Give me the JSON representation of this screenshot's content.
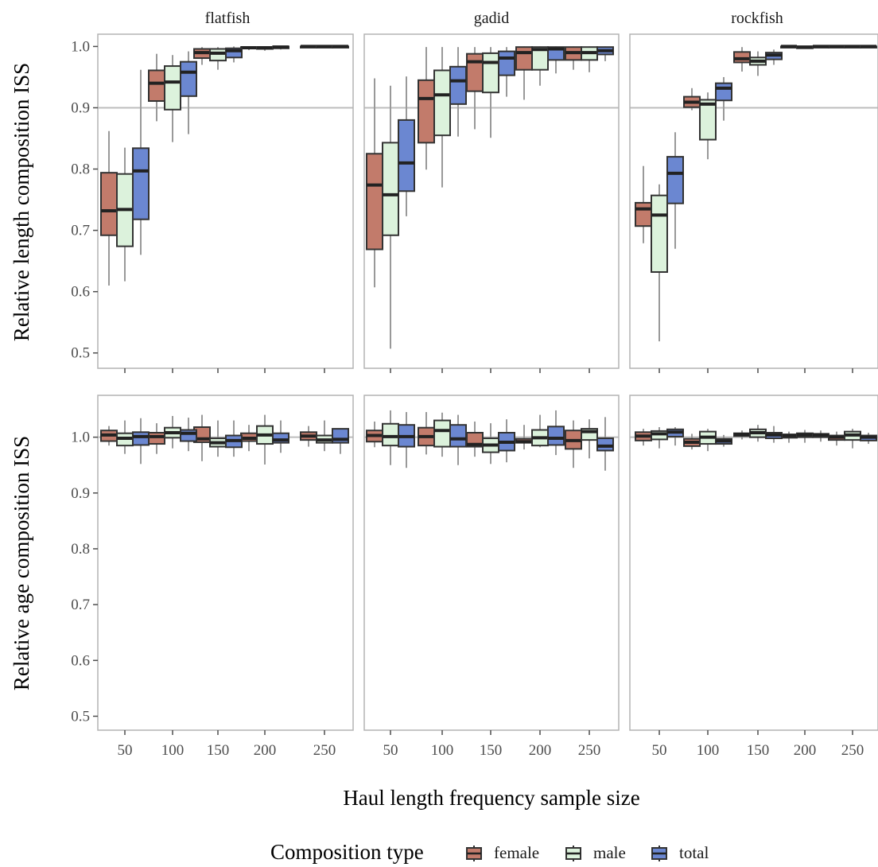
{
  "chart_data": {
    "type": "boxplot",
    "facets": {
      "columns": [
        "flatfish",
        "gadid",
        "rockfish"
      ],
      "rows": [
        "length",
        "age"
      ]
    },
    "categories": [
      "50",
      "100",
      "150",
      "200",
      "250"
    ],
    "xlabel": "Haul length frequency sample size",
    "ylabels": {
      "length": "Relative length composition ISS",
      "age": "Relative age composition ISS"
    },
    "ylim": [
      0.475,
      1.02
    ],
    "yticks": [
      0.5,
      0.6,
      0.7,
      0.8,
      0.9,
      1.0
    ],
    "yticks_age": [
      0.5,
      0.6,
      0.7,
      0.8,
      0.9,
      1.0
    ],
    "ylim_age": [
      0.475,
      1.075
    ],
    "reference_lines": {
      "length": 0.9,
      "age": 1.0
    },
    "legend": {
      "title": "Composition type",
      "entries": [
        "female",
        "male",
        "total"
      ],
      "colors": [
        "#c27b6b",
        "#dcf2dc",
        "#6b87d1"
      ],
      "position": "bottom"
    },
    "panels": {
      "length": {
        "flatfish": {
          "female": [
            [
              0.61,
              0.692,
              0.732,
              0.794,
              0.862
            ],
            [
              0.878,
              0.911,
              0.94,
              0.961,
              0.988
            ],
            [
              0.97,
              0.981,
              0.99,
              0.996,
              0.999
            ],
            [
              0.994,
              0.997,
              0.998,
              0.999,
              1.0
            ],
            [
              0.998,
              0.999,
              1.0,
              1.0,
              1.0
            ]
          ],
          "male": [
            [
              0.617,
              0.674,
              0.734,
              0.792,
              0.835
            ],
            [
              0.844,
              0.897,
              0.942,
              0.968,
              0.986
            ],
            [
              0.962,
              0.977,
              0.989,
              0.996,
              0.999
            ],
            [
              0.993,
              0.996,
              0.998,
              0.999,
              1.0
            ],
            [
              0.998,
              0.999,
              1.0,
              1.0,
              1.0
            ]
          ],
          "total": [
            [
              0.66,
              0.718,
              0.797,
              0.834,
              0.962
            ],
            [
              0.857,
              0.919,
              0.958,
              0.975,
              0.992
            ],
            [
              0.974,
              0.982,
              0.993,
              0.997,
              1.0
            ],
            [
              0.995,
              0.997,
              0.999,
              1.0,
              1.0
            ],
            [
              0.999,
              0.999,
              1.0,
              1.0,
              1.0
            ]
          ]
        },
        "gadid": {
          "female": [
            [
              0.607,
              0.669,
              0.774,
              0.825,
              0.948
            ],
            [
              0.799,
              0.843,
              0.915,
              0.945,
              0.999
            ],
            [
              0.865,
              0.927,
              0.975,
              0.988,
              0.999
            ],
            [
              0.913,
              0.962,
              0.99,
              0.999,
              1.0
            ],
            [
              0.962,
              0.978,
              0.99,
              0.999,
              1.0
            ]
          ],
          "male": [
            [
              0.507,
              0.692,
              0.758,
              0.843,
              0.936
            ],
            [
              0.77,
              0.855,
              0.921,
              0.961,
              0.999
            ],
            [
              0.851,
              0.925,
              0.974,
              0.989,
              0.999
            ],
            [
              0.936,
              0.962,
              0.995,
              0.999,
              1.0
            ],
            [
              0.958,
              0.978,
              0.99,
              0.999,
              1.0
            ]
          ],
          "total": [
            [
              0.723,
              0.764,
              0.81,
              0.88,
              0.951
            ],
            [
              0.853,
              0.906,
              0.944,
              0.967,
              0.999
            ],
            [
              0.918,
              0.953,
              0.981,
              0.992,
              0.999
            ],
            [
              0.956,
              0.978,
              0.996,
              0.999,
              1.0
            ],
            [
              0.976,
              0.987,
              0.993,
              0.999,
              1.0
            ]
          ]
        },
        "rockfish": {
          "female": [
            [
              0.679,
              0.707,
              0.735,
              0.745,
              0.805
            ],
            [
              0.896,
              0.901,
              0.909,
              0.918,
              0.932
            ],
            [
              0.959,
              0.974,
              0.98,
              0.991,
              0.999
            ],
            [
              0.998,
              0.999,
              1.0,
              1.0,
              1.0
            ],
            [
              0.999,
              1.0,
              1.0,
              1.0,
              1.0
            ]
          ],
          "male": [
            [
              0.519,
              0.632,
              0.725,
              0.757,
              0.775
            ],
            [
              0.816,
              0.848,
              0.906,
              0.913,
              0.925
            ],
            [
              0.952,
              0.97,
              0.976,
              0.982,
              0.992
            ],
            [
              0.997,
              0.998,
              0.999,
              0.999,
              1.0
            ],
            [
              0.999,
              1.0,
              1.0,
              1.0,
              1.0
            ]
          ],
          "total": [
            [
              0.67,
              0.744,
              0.793,
              0.82,
              0.86
            ],
            [
              0.879,
              0.912,
              0.932,
              0.94,
              0.95
            ],
            [
              0.97,
              0.979,
              0.986,
              0.99,
              0.995
            ],
            [
              0.998,
              0.999,
              1.0,
              1.0,
              1.0
            ],
            [
              0.999,
              1.0,
              1.0,
              1.0,
              1.0
            ]
          ]
        }
      },
      "age": {
        "flatfish": {
          "female": [
            [
              0.985,
              0.993,
              1.004,
              1.012,
              1.02
            ],
            [
              0.97,
              0.988,
              1.001,
              1.008,
              1.025
            ],
            [
              0.957,
              0.991,
              0.997,
              1.018,
              1.04
            ],
            [
              0.975,
              0.993,
              0.998,
              1.007,
              1.022
            ],
            [
              0.983,
              0.995,
              1.002,
              1.009,
              1.02
            ]
          ],
          "male": [
            [
              0.97,
              0.985,
              0.998,
              1.007,
              1.03
            ],
            [
              0.98,
              0.999,
              1.008,
              1.017,
              1.038
            ],
            [
              0.965,
              0.983,
              0.99,
              0.998,
              1.03
            ],
            [
              0.951,
              0.988,
              1.004,
              1.02,
              1.04
            ],
            [
              0.975,
              0.99,
              0.995,
              1.003,
              1.03
            ]
          ],
          "total": [
            [
              0.952,
              0.986,
              1.001,
              1.009,
              1.034
            ],
            [
              0.975,
              0.993,
              1.007,
              1.013,
              1.035
            ],
            [
              0.965,
              0.982,
              0.994,
              1.003,
              1.03
            ],
            [
              0.972,
              0.99,
              0.995,
              1.007,
              1.03
            ],
            [
              0.97,
              0.99,
              0.996,
              1.015,
              1.016
            ]
          ]
        },
        "gadid": {
          "female": [
            [
              0.982,
              0.992,
              1.003,
              1.012,
              1.028
            ],
            [
              0.969,
              0.985,
              1.001,
              1.017,
              1.045
            ],
            [
              0.965,
              0.983,
              0.987,
              1.008,
              1.028
            ],
            [
              0.978,
              0.99,
              0.992,
              0.997,
              1.022
            ],
            [
              0.945,
              0.979,
              0.994,
              1.012,
              1.03
            ]
          ],
          "male": [
            [
              0.95,
              0.985,
              1.001,
              1.024,
              1.048
            ],
            [
              0.965,
              0.983,
              1.012,
              1.03,
              1.044
            ],
            [
              0.952,
              0.973,
              0.986,
              0.998,
              1.025
            ],
            [
              0.982,
              0.985,
              0.999,
              1.013,
              1.04
            ],
            [
              0.962,
              0.995,
              1.01,
              1.015,
              1.032
            ]
          ],
          "total": [
            [
              0.945,
              0.983,
              1.001,
              1.022,
              1.045
            ],
            [
              0.95,
              0.983,
              0.997,
              1.022,
              1.04
            ],
            [
              0.955,
              0.976,
              0.991,
              1.008,
              1.032
            ],
            [
              0.968,
              0.986,
              0.998,
              1.019,
              1.048
            ],
            [
              0.94,
              0.976,
              0.984,
              0.998,
              1.036
            ]
          ]
        },
        "rockfish": {
          "female": [
            [
              0.985,
              0.994,
              1.002,
              1.009,
              1.015
            ],
            [
              0.978,
              0.984,
              0.991,
              0.997,
              1.006
            ],
            [
              0.996,
              1.002,
              1.005,
              1.007,
              1.012
            ],
            [
              0.99,
              0.999,
              1.003,
              1.005,
              1.01
            ],
            [
              0.985,
              0.995,
              1.0,
              1.003,
              1.01
            ]
          ],
          "male": [
            [
              0.98,
              0.996,
              1.006,
              1.011,
              1.018
            ],
            [
              0.975,
              0.988,
              1.0,
              1.01,
              1.015
            ],
            [
              0.992,
              1.0,
              1.008,
              1.014,
              1.022
            ],
            [
              0.99,
              1.0,
              1.004,
              1.007,
              1.013
            ],
            [
              0.98,
              0.995,
              1.004,
              1.01,
              1.015
            ]
          ],
          "total": [
            [
              0.985,
              1.001,
              1.009,
              1.014,
              1.018
            ],
            [
              0.983,
              0.988,
              0.993,
              0.997,
              1.004
            ],
            [
              0.99,
              0.998,
              1.004,
              1.008,
              1.02
            ],
            [
              0.992,
              1.0,
              1.004,
              1.006,
              1.012
            ],
            [
              0.988,
              0.994,
              1.0,
              1.003,
              1.008
            ]
          ]
        }
      }
    },
    "colors": {
      "panel_border": "#b3b3b3",
      "reference_line": "#bdbdbd",
      "whisker": "#999999",
      "box_outline": "#333333",
      "median": "#222222"
    }
  }
}
